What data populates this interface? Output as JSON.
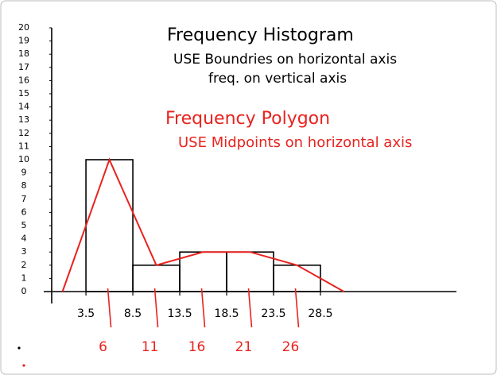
{
  "chart_data": {
    "type": "histogram",
    "title": "Frequency Histogram",
    "annotations": [
      "USE Boundries on horizontal axis",
      "freq. on vertical axis"
    ],
    "bins": [
      3.5,
      8.5,
      13.5,
      18.5,
      23.5,
      28.5
    ],
    "counts": [
      10,
      2,
      3,
      3,
      2
    ],
    "color": "#000000",
    "xlim": [
      -1,
      43
    ],
    "ylim": [
      0,
      20
    ],
    "yticks": [
      0,
      1,
      2,
      3,
      4,
      5,
      6,
      7,
      8,
      9,
      10,
      11,
      12,
      13,
      14,
      15,
      16,
      17,
      18,
      19,
      20
    ],
    "xticks": [
      3.5,
      8.5,
      13.5,
      18.5,
      23.5,
      28.5
    ],
    "polygon": {
      "type": "line",
      "title": "Frequency Polygon",
      "subtitle": "USE Midpoints on horizontal axis",
      "color": "#e8231f",
      "x": [
        1,
        6,
        11,
        16,
        21,
        26,
        31
      ],
      "values": [
        0,
        10,
        2,
        3,
        3,
        2,
        0
      ],
      "xticks": [
        6,
        11,
        16,
        21,
        26
      ]
    }
  }
}
